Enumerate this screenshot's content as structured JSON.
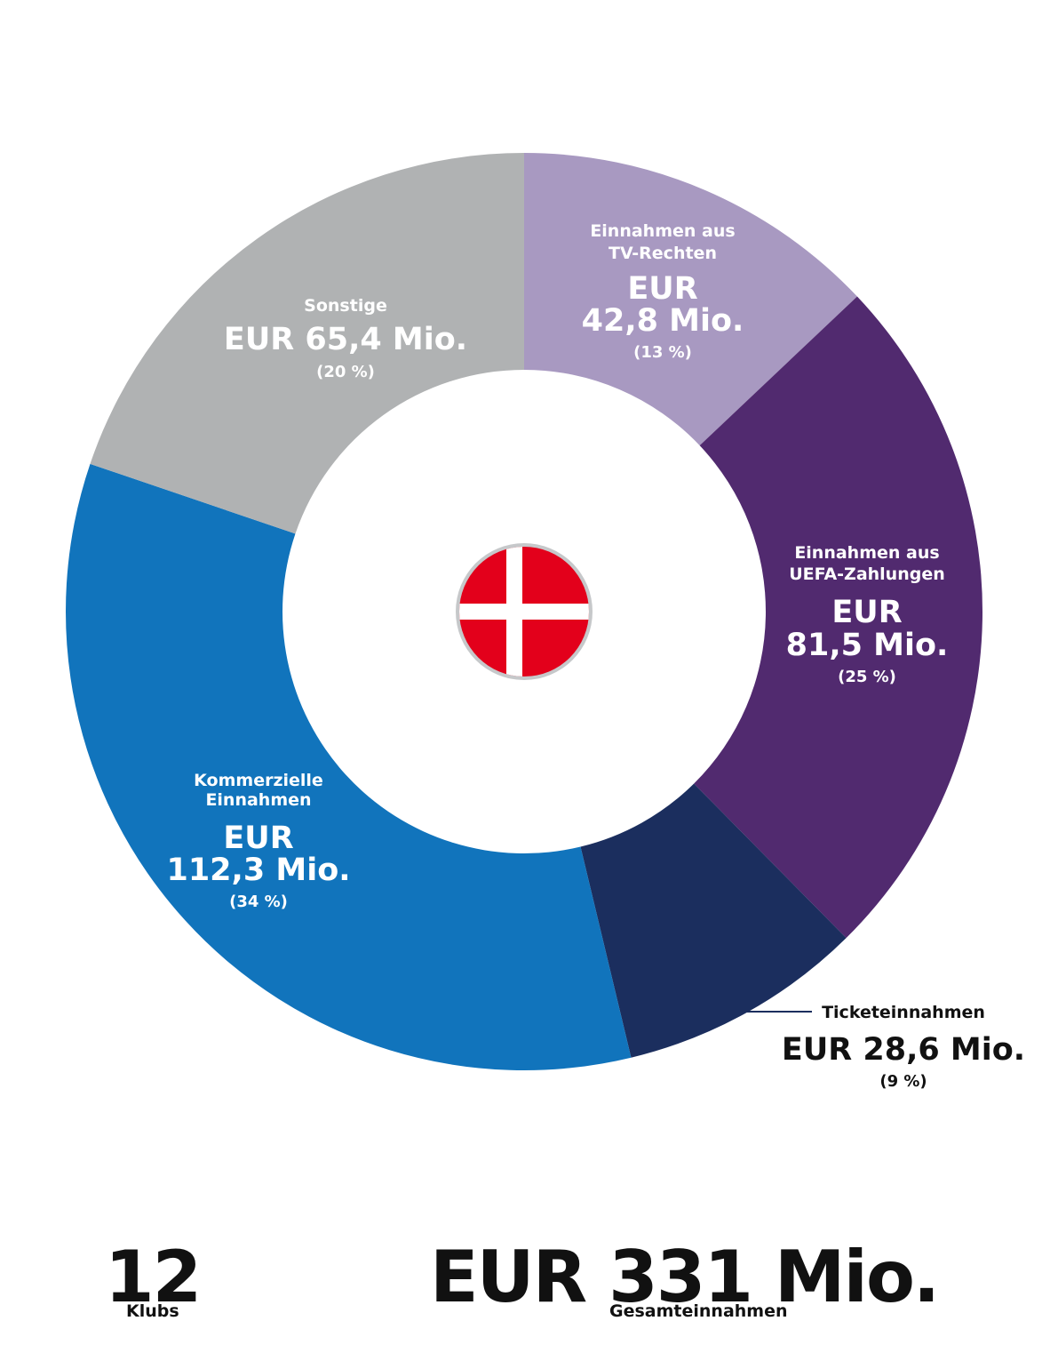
{
  "chart_data": {
    "type": "pie",
    "style": "donut",
    "title": "",
    "center_icon": "denmark-flag",
    "colors": {
      "tv": "#a899c1",
      "uefa": "#512a6f",
      "tickets": "#1b2e5e",
      "commercial": "#1174bc",
      "other": "#b0b2b3",
      "flag_red": "#e3001b",
      "flag_white": "#ffffff",
      "flag_ring": "#c6c8ca"
    },
    "slices": [
      {
        "key": "tv",
        "label_lines": [
          "Einnahmen aus",
          "TV-Rechten"
        ],
        "amount_lines": [
          "EUR",
          "42,8 Mio."
        ],
        "value": 42.8,
        "percent": "(13 %)"
      },
      {
        "key": "uefa",
        "label_lines": [
          "Einnahmen aus",
          "UEFA-Zahlungen"
        ],
        "amount_lines": [
          "EUR",
          "81,5 Mio."
        ],
        "value": 81.5,
        "percent": "(25 %)"
      },
      {
        "key": "tickets",
        "label_lines": [
          "Ticketeinnahmen"
        ],
        "amount_lines": [
          "EUR 28,6 Mio."
        ],
        "value": 28.6,
        "percent": "(9 %)"
      },
      {
        "key": "commercial",
        "label_lines": [
          "Kommerzielle",
          "Einnahmen"
        ],
        "amount_lines": [
          "EUR",
          "112,3 Mio."
        ],
        "value": 112.3,
        "percent": "(34 %)"
      },
      {
        "key": "other",
        "label_lines": [
          "Sonstige"
        ],
        "amount_lines": [
          "EUR 65,4 Mio."
        ],
        "value": 65.4,
        "percent": "(20 %)"
      }
    ]
  },
  "stats": {
    "clubs_value": "12",
    "clubs_label": "Klubs",
    "total_value": "EUR 331 Mio.",
    "total_label": "Gesamteinnahmen"
  }
}
